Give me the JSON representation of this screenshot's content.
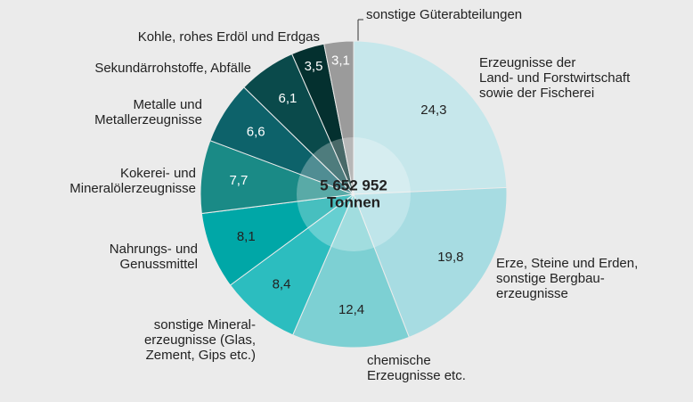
{
  "chart_data": {
    "type": "pie",
    "center_label": [
      "5 652 952",
      "Tonnen"
    ],
    "categories": [
      "Erzeugnisse der\nLand- und Forstwirtschaft\nsowie der Fischerei",
      "Erze, Steine und Erden,\nsonstige Bergbau-\nerzeugnisse",
      "chemische\nErzeugnisse etc.",
      "sonstige Mineral-\nerzeugnisse (Glas,\nZement, Gips etc.)",
      "Nahrungs- und\nGenussmittel",
      "Kokerei- und\nMineralölerzeugnisse",
      "Metalle und\nMetallerzeugnisse",
      "Sekundärrohstoffe, Abfälle",
      "Kohle, rohes Erdöl und Erdgas",
      "sonstige Güterabteilungen"
    ],
    "values": [
      24.3,
      19.8,
      12.4,
      8.4,
      8.1,
      7.7,
      6.6,
      6.1,
      3.5,
      3.1
    ],
    "value_labels": [
      "24,3",
      "19,8",
      "12,4",
      "8,4",
      "8,1",
      "7,7",
      "6,6",
      "6,1",
      "3,5",
      "3,1"
    ],
    "colors": [
      "#c6e7eb",
      "#a7dce2",
      "#7dd0d3",
      "#2cbdbf",
      "#00a7a7",
      "#1a8a86",
      "#0d626a",
      "#0a4a4b",
      "#04302f",
      "#9b9b9b"
    ]
  }
}
